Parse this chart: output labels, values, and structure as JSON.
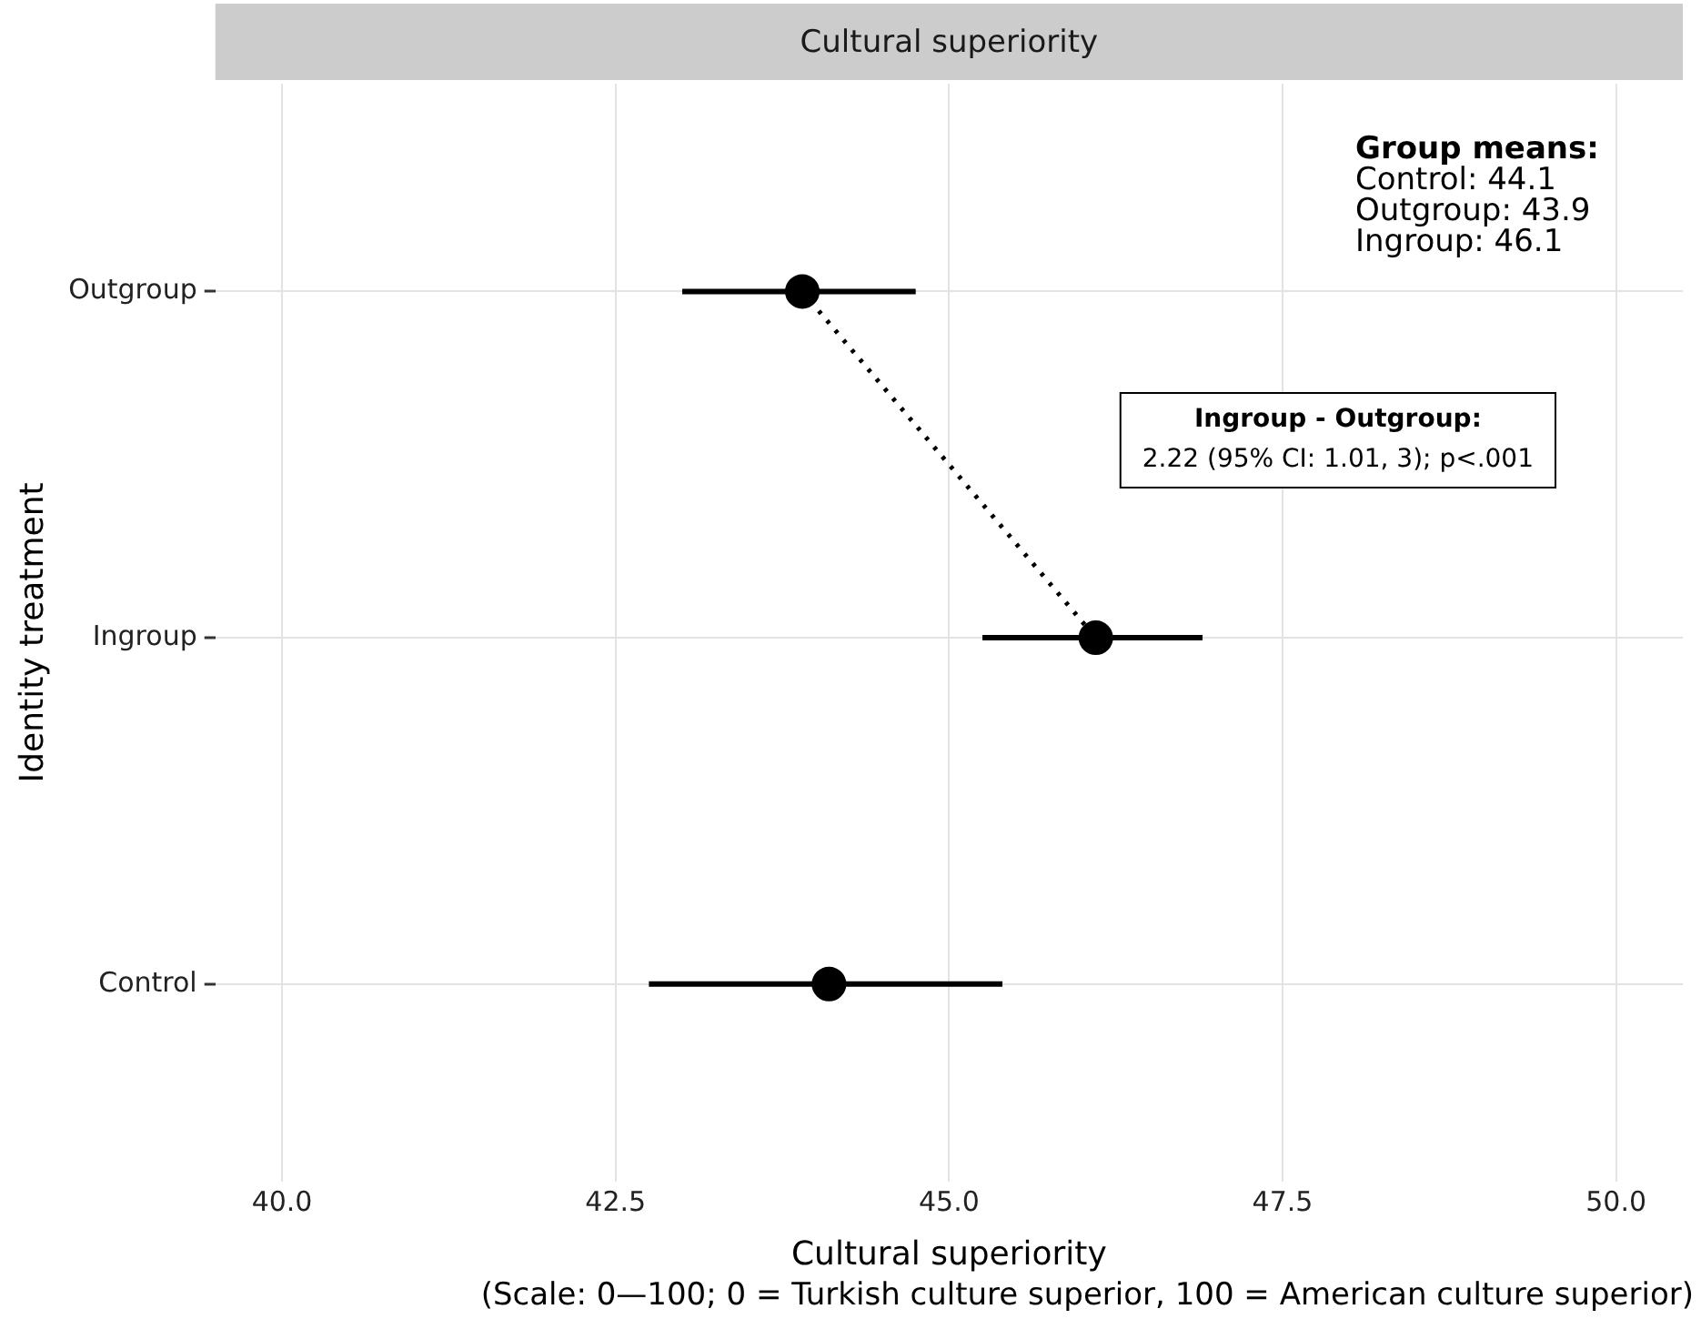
{
  "chart_data": {
    "type": "scatter",
    "orientation": "horizontal",
    "title": "Cultural superiority",
    "xlabel": "Cultural superiority",
    "ylabel": "Identity treatment",
    "categories": [
      "Outgroup",
      "Ingroup",
      "Control"
    ],
    "series": [
      {
        "type": "scatter",
        "color": "#000000",
        "marker": "circle",
        "values": [
          43.9,
          46.1,
          44.1
        ],
        "errors": [
          [
            43.0,
            44.75
          ],
          [
            45.25,
            46.9
          ],
          [
            42.75,
            45.4
          ]
        ]
      },
      {
        "type": "line",
        "color": "#000000",
        "marker": "none",
        "line_style": "dotted",
        "values": [
          43.9,
          46.1,
          null
        ]
      }
    ],
    "xlim": [
      39.5,
      50.5
    ],
    "xticks": [
      {
        "value": 40,
        "label": "40.0"
      },
      42.5,
      {
        "value": 45,
        "label": "45.0"
      },
      47.5,
      {
        "value": 50,
        "label": "50.0"
      }
    ],
    "grid": true,
    "annotations": [
      "Group means:\nControl: 44.1\nOutgroup: 43.9\nIngroup: 46.1",
      "Ingroup - Outgroup:\n2.22 (95% CI: 1.01, 3); p<.001",
      "(Scale: 0—100; 0 = Turkish culture superior, 100 = American culture superior)"
    ]
  }
}
